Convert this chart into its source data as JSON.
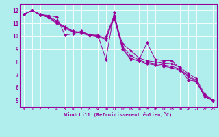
{
  "xlabel": "Windchill (Refroidissement éolien,°C)",
  "bg_color": "#b0eeee",
  "line_color": "#990099",
  "grid_color": "#ddffff",
  "xlim": [
    -0.5,
    23.5
  ],
  "ylim": [
    4.5,
    12.5
  ],
  "xticks": [
    0,
    1,
    2,
    3,
    4,
    5,
    6,
    7,
    8,
    9,
    10,
    11,
    12,
    13,
    14,
    15,
    16,
    17,
    18,
    19,
    20,
    21,
    22,
    23
  ],
  "yticks": [
    5,
    6,
    7,
    8,
    9,
    10,
    11,
    12
  ],
  "series": [
    [
      11.7,
      12.0,
      11.7,
      11.6,
      11.5,
      10.1,
      10.2,
      10.4,
      10.1,
      10.1,
      8.2,
      11.85,
      9.0,
      8.2,
      8.1,
      9.5,
      8.2,
      8.1,
      8.1,
      7.5,
      6.6,
      6.5,
      5.3,
      5.0
    ],
    [
      11.7,
      12.0,
      11.7,
      11.55,
      11.2,
      10.6,
      10.35,
      10.35,
      10.15,
      10.05,
      10.0,
      11.6,
      9.4,
      8.9,
      8.3,
      8.1,
      8.0,
      7.9,
      7.85,
      7.6,
      7.1,
      6.7,
      5.5,
      5.05
    ],
    [
      11.7,
      12.0,
      11.65,
      11.5,
      11.1,
      10.75,
      10.4,
      10.3,
      10.1,
      10.0,
      9.85,
      11.5,
      9.2,
      8.5,
      8.15,
      7.95,
      7.85,
      7.75,
      7.65,
      7.45,
      6.95,
      6.55,
      5.4,
      5.0
    ],
    [
      11.7,
      12.0,
      11.65,
      11.45,
      11.0,
      10.7,
      10.35,
      10.25,
      10.05,
      9.95,
      9.75,
      11.4,
      9.05,
      8.3,
      8.05,
      7.85,
      7.75,
      7.65,
      7.55,
      7.35,
      6.85,
      6.45,
      5.3,
      5.0
    ]
  ],
  "x_values": [
    0,
    1,
    2,
    3,
    4,
    5,
    6,
    7,
    8,
    9,
    10,
    11,
    12,
    13,
    14,
    15,
    16,
    17,
    18,
    19,
    20,
    21,
    22,
    23
  ]
}
